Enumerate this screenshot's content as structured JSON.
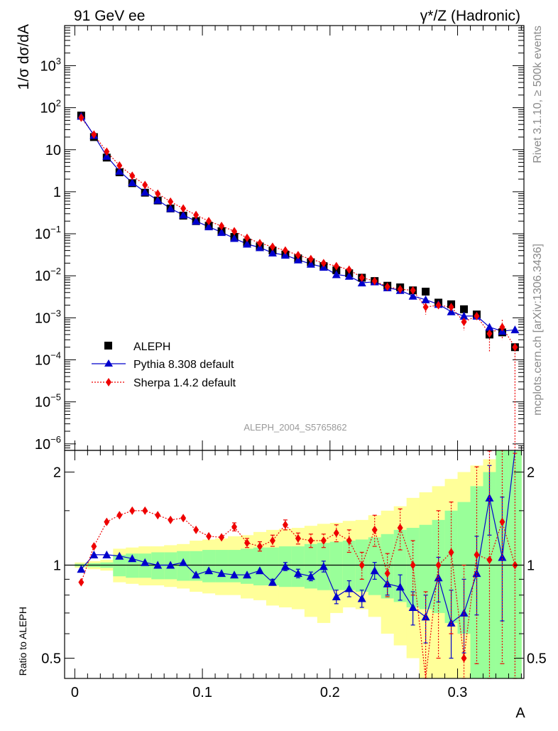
{
  "header": {
    "left": "91 GeV ee",
    "right": "γ*/Z (Hadronic)"
  },
  "side_labels": {
    "rivet": "Rivet 3.1.10, ≥ 500k events",
    "mcplots": "mcplots.cern.ch [arXiv:1306.3436]"
  },
  "watermark": "ALEPH_2004_S5765862",
  "colors": {
    "data": "#000000",
    "pythia": "#0000cc",
    "sherpa": "#ee0000",
    "band_inner": "#99ff99",
    "band_outer": "#ffff99"
  },
  "chart_data": [
    {
      "type": "scatter",
      "name": "main",
      "ylabel": "1/σ dσ/dA",
      "yscale": "log",
      "xlim": [
        -0.008,
        0.352
      ],
      "ylim": [
        7e-07,
        9000
      ],
      "yticks": [
        {
          "v": 1e-06,
          "base": "10",
          "exp": "−6"
        },
        {
          "v": 1e-05,
          "base": "10",
          "exp": "−5"
        },
        {
          "v": 0.0001,
          "base": "10",
          "exp": "−4"
        },
        {
          "v": 0.001,
          "base": "10",
          "exp": "−3"
        },
        {
          "v": 0.01,
          "base": "10",
          "exp": "−2"
        },
        {
          "v": 0.1,
          "base": "10",
          "exp": "−1"
        },
        {
          "v": 1,
          "base": "1",
          "exp": ""
        },
        {
          "v": 10,
          "base": "10",
          "exp": ""
        },
        {
          "v": 100,
          "base": "10",
          "exp": "2"
        },
        {
          "v": 1000,
          "base": "10",
          "exp": "3"
        }
      ],
      "legend": [
        {
          "name": "ALEPH",
          "marker": "square"
        },
        {
          "name": "Pythia 8.308 default",
          "marker": "triangle"
        },
        {
          "name": "Sherpa 1.4.2 default",
          "marker": "diamond"
        }
      ],
      "x": [
        0.005,
        0.015,
        0.025,
        0.035,
        0.045,
        0.055,
        0.065,
        0.075,
        0.085,
        0.095,
        0.105,
        0.115,
        0.125,
        0.135,
        0.145,
        0.155,
        0.165,
        0.175,
        0.185,
        0.195,
        0.205,
        0.215,
        0.225,
        0.235,
        0.245,
        0.255,
        0.265,
        0.275,
        0.285,
        0.295,
        0.305,
        0.315,
        0.325,
        0.335,
        0.345
      ],
      "series": [
        {
          "name": "ALEPH",
          "values": [
            65,
            20,
            6.5,
            2.9,
            1.6,
            0.95,
            0.62,
            0.4,
            0.27,
            0.2,
            0.155,
            0.115,
            0.084,
            0.062,
            0.05,
            0.04,
            0.032,
            0.026,
            0.021,
            0.017,
            0.0135,
            0.0115,
            0.009,
            0.0075,
            0.0058,
            0.0053,
            0.0045,
            0.0042,
            0.0023,
            0.0021,
            0.0016,
            0.0012,
            0.0004,
            0.00045,
            0.0002
          ]
        },
        {
          "name": "Pythia 8.308 default",
          "values": [
            63,
            22,
            7,
            3.1,
            1.65,
            0.98,
            0.63,
            0.4,
            0.28,
            0.2,
            0.147,
            0.108,
            0.078,
            0.057,
            0.047,
            0.035,
            0.031,
            0.024,
            0.019,
            0.016,
            0.0107,
            0.0098,
            0.0068,
            0.0072,
            0.0052,
            0.0045,
            0.0033,
            0.0027,
            0.0021,
            0.0014,
            0.0011,
            0.0011,
            0.0006,
            0.00048,
            0.00052
          ]
        },
        {
          "name": "Sherpa 1.4.2 default",
          "values": [
            58,
            23,
            9,
            4.2,
            2.4,
            1.45,
            0.9,
            0.58,
            0.4,
            0.28,
            0.2,
            0.153,
            0.115,
            0.08,
            0.06,
            0.049,
            0.04,
            0.031,
            0.025,
            0.02,
            0.017,
            0.014,
            0.009,
            0.0075,
            0.0055,
            0.0048,
            0.0045,
            0.0018,
            0.002,
            0.0018,
            0.0008,
            0.0011,
            0.00042,
            0.0006,
            0.0002
          ]
        }
      ]
    },
    {
      "type": "scatter",
      "name": "ratio",
      "ylabel": "Ratio to ALEPH",
      "xlabel": "A",
      "yscale": "log",
      "xlim": [
        -0.008,
        0.352
      ],
      "ylim": [
        0.43,
        2.35
      ],
      "yticks": [
        {
          "v": 0.5,
          "label": "0.5"
        },
        {
          "v": 1,
          "label": "1"
        },
        {
          "v": 2,
          "label": "2"
        }
      ],
      "xticks": [
        {
          "v": 0,
          "label": "0"
        },
        {
          "v": 0.1,
          "label": "0.1"
        },
        {
          "v": 0.2,
          "label": "0.2"
        },
        {
          "v": 0.3,
          "label": "0.3"
        }
      ],
      "bands": {
        "edges": [
          0,
          0.01,
          0.02,
          0.03,
          0.04,
          0.05,
          0.06,
          0.07,
          0.08,
          0.09,
          0.1,
          0.11,
          0.12,
          0.13,
          0.14,
          0.15,
          0.16,
          0.17,
          0.18,
          0.19,
          0.2,
          0.21,
          0.22,
          0.23,
          0.24,
          0.25,
          0.26,
          0.27,
          0.28,
          0.29,
          0.3,
          0.31,
          0.32,
          0.33,
          0.34,
          0.35
        ],
        "outer_lo": [
          0.98,
          0.97,
          0.96,
          0.88,
          0.87,
          0.86,
          0.86,
          0.85,
          0.84,
          0.82,
          0.81,
          0.8,
          0.8,
          0.78,
          0.77,
          0.74,
          0.73,
          0.72,
          0.68,
          0.65,
          0.7,
          0.73,
          0.72,
          0.68,
          0.6,
          0.55,
          0.5,
          0.43,
          0.43,
          0.43,
          0.43,
          0.43,
          0.43,
          0.43,
          0.43
        ],
        "outer_hi": [
          1.02,
          1.03,
          1.04,
          1.13,
          1.14,
          1.15,
          1.15,
          1.16,
          1.17,
          1.2,
          1.21,
          1.22,
          1.24,
          1.25,
          1.28,
          1.3,
          1.31,
          1.32,
          1.34,
          1.36,
          1.37,
          1.39,
          1.4,
          1.45,
          1.5,
          1.55,
          1.65,
          1.72,
          1.8,
          1.9,
          2,
          2.1,
          2.2,
          2.35,
          2.35
        ],
        "inner_lo": [
          0.99,
          0.985,
          0.98,
          0.92,
          0.91,
          0.91,
          0.9,
          0.9,
          0.89,
          0.89,
          0.88,
          0.88,
          0.88,
          0.87,
          0.86,
          0.86,
          0.85,
          0.85,
          0.84,
          0.83,
          0.83,
          0.83,
          0.82,
          0.8,
          0.78,
          0.76,
          0.73,
          0.72,
          0.7,
          0.65,
          0.6,
          0.43,
          0.43,
          0.43,
          0.43
        ],
        "inner_hi": [
          1.01,
          1.015,
          1.02,
          1.08,
          1.09,
          1.09,
          1.1,
          1.1,
          1.11,
          1.11,
          1.12,
          1.12,
          1.12,
          1.13,
          1.14,
          1.14,
          1.15,
          1.15,
          1.17,
          1.18,
          1.19,
          1.2,
          1.21,
          1.23,
          1.26,
          1.3,
          1.32,
          1.35,
          1.4,
          1.5,
          1.6,
          1.8,
          2,
          2.35,
          2.35
        ]
      },
      "series": [
        {
          "name": "Pythia 8.308 default",
          "values": [
            0.97,
            1.08,
            1.08,
            1.07,
            1.05,
            1.02,
            1,
            1,
            1.02,
            0.93,
            0.96,
            0.94,
            0.93,
            0.93,
            0.96,
            0.88,
            0.99,
            0.94,
            0.92,
            0.99,
            0.79,
            0.84,
            0.78,
            0.96,
            0.87,
            0.85,
            0.73,
            0.68,
            0.91,
            0.65,
            0.7,
            0.94,
            1.65,
            1.06,
            2.4
          ],
          "err_up": [
            0,
            0,
            0,
            0,
            0,
            0,
            0,
            0,
            0,
            0,
            0,
            0,
            0,
            0,
            0,
            0.02,
            0.03,
            0.03,
            0.03,
            0.04,
            0.04,
            0.05,
            0.05,
            0.06,
            0.07,
            0.08,
            0.09,
            0.12,
            0.15,
            0.18,
            0.2,
            0.3,
            0.45,
            0.6,
            0
          ],
          "err_dn": [
            0,
            0,
            0,
            0,
            0,
            0,
            0,
            0,
            0,
            0,
            0,
            0,
            0,
            0,
            0,
            0.02,
            0.03,
            0.03,
            0.03,
            0.04,
            0.04,
            0.05,
            0.05,
            0.06,
            0.07,
            0.08,
            0.09,
            0.12,
            0.15,
            0.15,
            0.18,
            0.25,
            0.4,
            0.4,
            0
          ]
        },
        {
          "name": "Sherpa 1.4.2 default",
          "values": [
            0.88,
            1.15,
            1.38,
            1.45,
            1.5,
            1.5,
            1.45,
            1.4,
            1.42,
            1.3,
            1.24,
            1.23,
            1.33,
            1.18,
            1.15,
            1.2,
            1.35,
            1.22,
            1.2,
            1.2,
            1.27,
            1.2,
            1,
            1.3,
            0.94,
            1.32,
            1,
            0.42,
            1,
            1.1,
            0.5,
            1.08,
            1.04,
            1.38,
            1
          ],
          "err_up": [
            0,
            0,
            0,
            0,
            0,
            0,
            0,
            0,
            0,
            0,
            0,
            0,
            0.04,
            0.04,
            0.04,
            0.05,
            0.05,
            0.05,
            0.06,
            0.06,
            0.08,
            0.1,
            0.1,
            0.15,
            0.15,
            0.2,
            0.2,
            0.4,
            0.5,
            0.5,
            0.5,
            1,
            1.3,
            1,
            1.3
          ],
          "err_dn": [
            0,
            0,
            0,
            0,
            0,
            0,
            0,
            0,
            0,
            0,
            0,
            0,
            0.04,
            0.04,
            0.04,
            0.05,
            0.05,
            0.05,
            0.06,
            0.06,
            0.08,
            0.1,
            0.1,
            0.15,
            0.15,
            0.2,
            0.2,
            0.3,
            0.5,
            0.5,
            0.3,
            0.6,
            0.7,
            0.9,
            0.7
          ]
        }
      ]
    }
  ]
}
